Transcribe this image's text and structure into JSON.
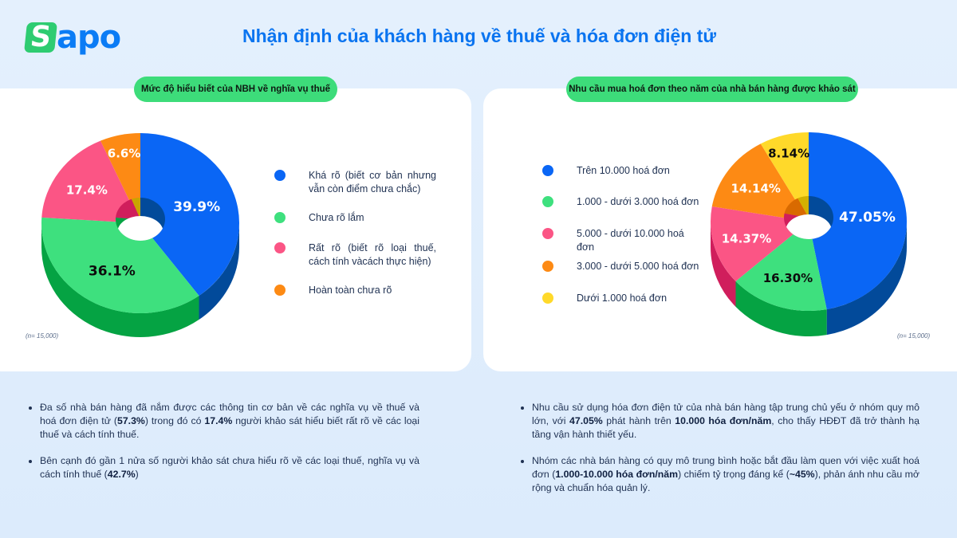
{
  "brand": {
    "logo_first": "S",
    "logo_rest": "apo",
    "color_green": "#2ecc71",
    "color_blue": "#0b7cf5"
  },
  "page": {
    "title": "Nhận định của khách hàng về thuế và hóa đơn điện tử"
  },
  "left_panel": {
    "pill": "Mức độ hiểu biết của NBH về nghĩa vụ thuế",
    "sample_note": "(n= 15,000)",
    "legend": [
      {
        "label": "Khá rõ (biết cơ bản nhưng vẫn còn điểm chưa chắc)",
        "color": "#0a66f5"
      },
      {
        "label": "Chưa rõ lắm",
        "color": "#3ee07e"
      },
      {
        "label": "Rất rõ (biết rõ loại thuế, cách tính vàcách thực hiện)",
        "color": "#fb5585"
      },
      {
        "label": "Hoàn toàn chưa rõ",
        "color": "#fd8a14"
      }
    ],
    "notes": [
      {
        "parts": [
          {
            "t": "Đa số nhà bán hàng đã nắm được các thông tin cơ bản về các nghĩa vụ về thuế và hoá đơn điện tử ("
          },
          {
            "t": "57.3%",
            "b": true
          },
          {
            "t": ") trong đó có "
          },
          {
            "t": "17.4%",
            "b": true
          },
          {
            "t": " người khảo sát hiểu biết rất rõ về các loại thuế và cách tính thuế."
          }
        ]
      },
      {
        "parts": [
          {
            "t": "Bên cạnh đó gần 1 nửa số người khảo sát chưa hiểu rõ về các loại thuế, nghĩa vụ và cách tính thuế ("
          },
          {
            "t": "42.7%",
            "b": true
          },
          {
            "t": ")"
          }
        ]
      }
    ]
  },
  "right_panel": {
    "pill": "Nhu cầu mua hoá đơn theo năm của nhà bán hàng được khảo sát",
    "sample_note": "(n= 15,000)",
    "legend": [
      {
        "label": "Trên 10.000 hoá đơn",
        "color": "#0a66f5"
      },
      {
        "label": "1.000 - dưới 3.000 hoá đơn",
        "color": "#3ee07e"
      },
      {
        "label": "5.000 - dưới 10.000 hoá đơn",
        "color": "#fb5585"
      },
      {
        "label": "3.000 - dưới 5.000 hoá đơn",
        "color": "#fd8a14"
      },
      {
        "label": "Dưới 1.000 hoá đơn",
        "color": "#ffd92a"
      }
    ],
    "notes": [
      {
        "parts": [
          {
            "t": "Nhu cầu sử dụng hóa đơn điện tử của nhà bán hàng tập trung chủ yếu ở nhóm quy mô lớn, với "
          },
          {
            "t": "47.05%",
            "b": true
          },
          {
            "t": " phát hành trên "
          },
          {
            "t": "10.000 hóa đơn/năm",
            "b": true
          },
          {
            "t": ", cho thấy HĐĐT đã trở thành hạ tầng vận hành thiết yếu."
          }
        ]
      },
      {
        "parts": [
          {
            "t": "Nhóm các nhà bán hàng có quy mô trung bình hoặc bắt đầu làm quen với việc xuất hoá đơn ("
          },
          {
            "t": "1.000-10.000 hóa đơn/năm",
            "b": true
          },
          {
            "t": ") chiếm tỷ trọng đáng kể ("
          },
          {
            "t": "~45%",
            "b": true
          },
          {
            "t": "), phản ánh nhu cầu mở rộng và chuẩn hóa quản lý."
          }
        ]
      }
    ]
  },
  "chart_data": [
    {
      "type": "pie",
      "title": "Mức độ hiểu biết của NBH về nghĩa vụ thuế",
      "note": "(n= 15,000)",
      "categories": [
        "Khá rõ (biết cơ bản nhưng vẫn còn điểm chưa chắc)",
        "Chưa rõ lắm",
        "Rất rõ (biết rõ loại thuế, cách tính vàcách thực hiện)",
        "Hoàn toàn chưa rõ"
      ],
      "values": [
        39.9,
        36.1,
        17.4,
        6.6
      ],
      "labels": [
        "39.9%",
        "36.1%",
        "17.4%",
        "6.6%"
      ],
      "colors": [
        "#0a66f5",
        "#3ee07e",
        "#fb5585",
        "#fd8a14"
      ],
      "side_colors": [
        "#024a9a",
        "#05a343",
        "#d01e5c",
        "#c9a400"
      ],
      "label_colors": [
        "#ffffff",
        "#0d0d0d",
        "#ffffff",
        "#ffffff"
      ],
      "legend_position": "right",
      "style": "3d-donut"
    },
    {
      "type": "pie",
      "title": "Nhu cầu mua hoá đơn theo năm của nhà bán hàng được khảo sát",
      "note": "(n= 15,000)",
      "categories": [
        "Trên 10.000 hoá đơn",
        "1.000 - dưới 3.000 hoá đơn",
        "5.000 - dưới 10.000 hoá đơn",
        "3.000 - dưới 5.000 hoá đơn",
        "Dưới 1.000 hoá đơn"
      ],
      "values": [
        47.05,
        16.3,
        14.37,
        14.14,
        8.14
      ],
      "labels": [
        "47.05%",
        "16.30%",
        "14.37%",
        "14.14%",
        "8.14%"
      ],
      "colors": [
        "#0a66f5",
        "#3ee07e",
        "#fb5585",
        "#fd8a14",
        "#ffd92a"
      ],
      "side_colors": [
        "#024a9a",
        "#05a343",
        "#d01e5c",
        "#d96a00",
        "#d4b000"
      ],
      "label_colors": [
        "#ffffff",
        "#0d0d0d",
        "#ffffff",
        "#ffffff",
        "#0d0d0d"
      ],
      "legend_position": "left",
      "style": "3d-donut"
    }
  ]
}
